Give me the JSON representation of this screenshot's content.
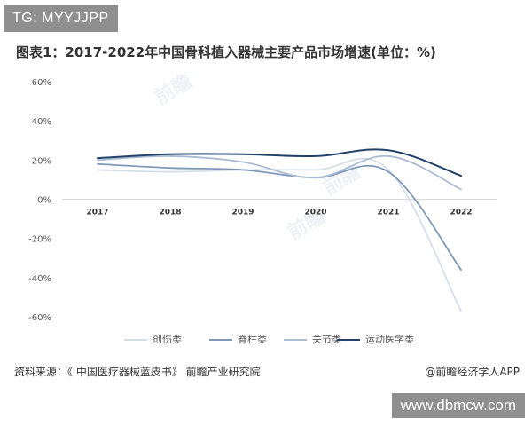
{
  "watermark_top": "TG: MYYJJPP",
  "watermark_bottom": "www.dbmcw.com",
  "chart_watermark": "前瞻",
  "source_text": "资料来源：《 中国医疗器械蓝皮书》 前瞻产业研究院",
  "credit_text": "@前瞻经济学人APP",
  "chart_data": {
    "type": "line",
    "title": "图表1：2017-2022年中国骨科植入器械主要产品市场增速(单位：%)",
    "categories": [
      "2017",
      "2018",
      "2019",
      "2020",
      "2021",
      "2022"
    ],
    "y_ticks": [
      "60%",
      "40%",
      "20%",
      "0%",
      "-20%",
      "-40%",
      "-60%"
    ],
    "ylim": [
      -60,
      60
    ],
    "grid": false,
    "legend_position": "bottom",
    "series": [
      {
        "name": "创伤类",
        "values": [
          15,
          14,
          15,
          15,
          15,
          -57
        ],
        "color": "#d6dee8"
      },
      {
        "name": "脊柱类",
        "values": [
          18,
          16,
          15,
          11,
          14,
          -36
        ],
        "color": "#7f98b8"
      },
      {
        "name": "关节类",
        "values": [
          20,
          22,
          19,
          11,
          22,
          5
        ],
        "color": "#a9bcd3"
      },
      {
        "name": "运动医学类",
        "values": [
          21,
          23,
          23,
          22,
          25,
          12
        ],
        "color": "#22416b"
      }
    ]
  }
}
